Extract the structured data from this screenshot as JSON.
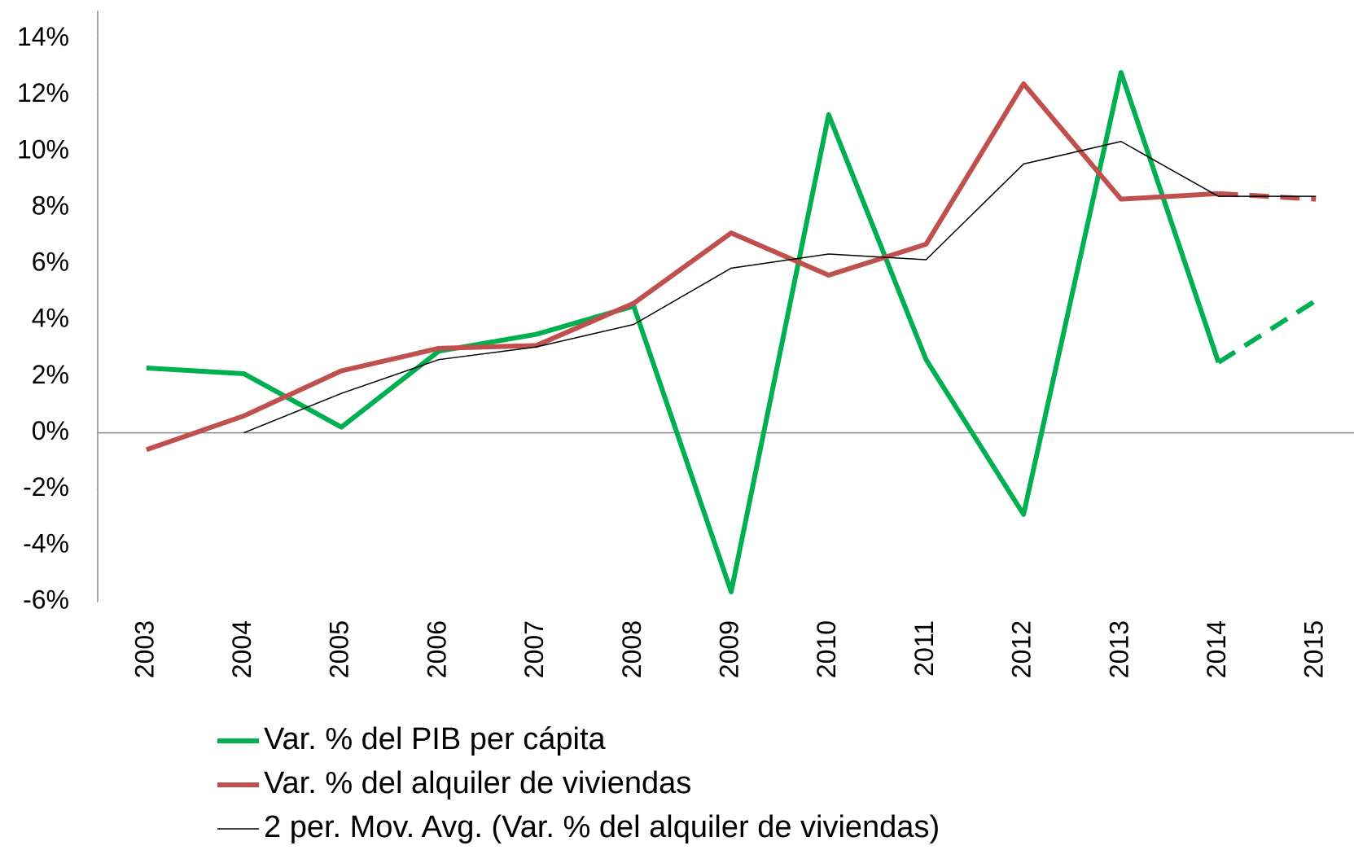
{
  "chart_data": {
    "type": "line",
    "categories": [
      "2003",
      "2004",
      "2005",
      "2006",
      "2007",
      "2008",
      "2009",
      "2010",
      "2011",
      "2012",
      "2013",
      "2014",
      "2015"
    ],
    "series": [
      {
        "name": "Var. % del PIB per cápita",
        "color": "#00b050",
        "width": 6,
        "dashed_last_segment": true,
        "values": [
          2.3,
          2.1,
          0.2,
          2.9,
          3.5,
          4.5,
          -5.65,
          11.3,
          2.6,
          -2.9,
          12.8,
          2.5,
          4.7
        ]
      },
      {
        "name": "Var. % del alquiler de viviendas",
        "color": "#c0504d",
        "width": 6,
        "dashed_last_segment": true,
        "values": [
          -0.6,
          0.6,
          2.2,
          3.0,
          3.1,
          4.6,
          7.1,
          5.6,
          6.7,
          12.4,
          8.3,
          8.5,
          8.3
        ]
      },
      {
        "name": "2 per. Mov. Avg. (Var. % del alquiler de viviendas)",
        "color": "#000000",
        "width": 1.5,
        "dashed_last_segment": false,
        "values": [
          null,
          0,
          1.4,
          2.6,
          3.05,
          3.85,
          5.85,
          6.35,
          6.15,
          9.55,
          10.35,
          8.4,
          8.4
        ]
      }
    ],
    "ylim": [
      -6,
      15
    ],
    "yticks": [
      {
        "value": -6,
        "label": "-6%"
      },
      {
        "value": -4,
        "label": "-4%"
      },
      {
        "value": -2,
        "label": "-2%"
      },
      {
        "value": 0,
        "label": "0%"
      },
      {
        "value": 2,
        "label": "2%"
      },
      {
        "value": 4,
        "label": "4%"
      },
      {
        "value": 6,
        "label": "6%"
      },
      {
        "value": 8,
        "label": "8%"
      },
      {
        "value": 10,
        "label": "10%"
      },
      {
        "value": 12,
        "label": "12%"
      },
      {
        "value": 14,
        "label": "14%"
      }
    ],
    "grid": false,
    "legend": "bottom"
  }
}
